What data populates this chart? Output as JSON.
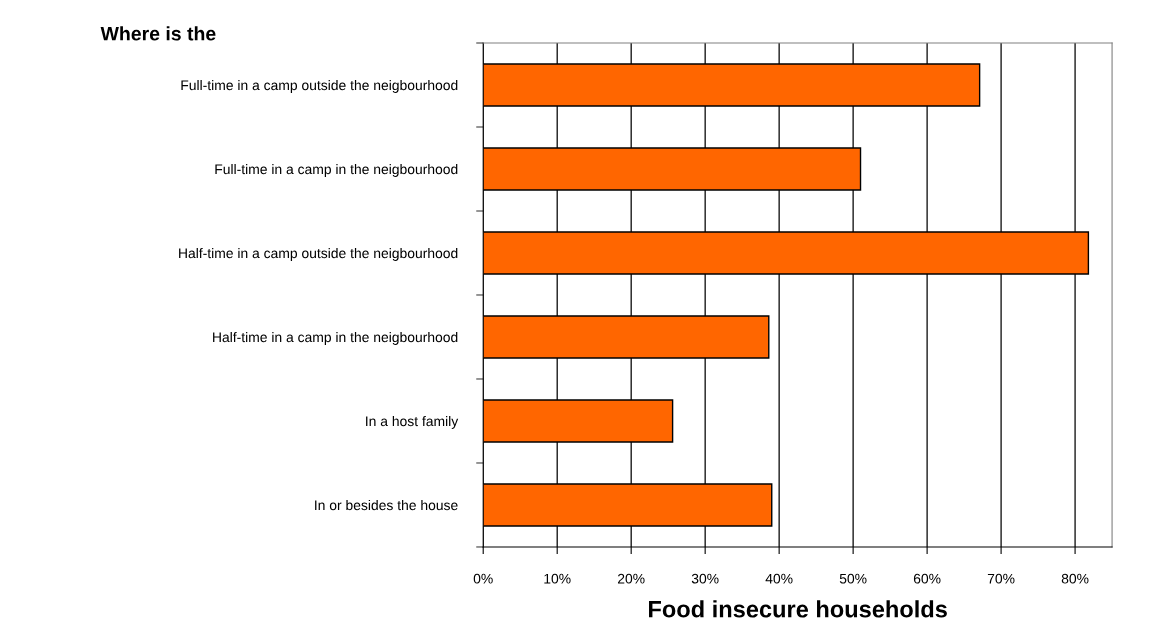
{
  "chart_data": {
    "type": "bar",
    "orientation": "horizontal",
    "title": "Where is the",
    "xlabel": "Food insecure households",
    "categories": [
      "Full-time in a camp outside the neigbourhood",
      "Full-time in a camp in the neigbourhood",
      "Half-time in a camp outside the neigbourhood",
      "Half-time in a camp in the neigbourhood",
      "In a host family",
      "In or besides the house"
    ],
    "values": [
      67.1,
      51.0,
      81.8,
      38.6,
      25.6,
      39.0
    ],
    "color": "#ff6600",
    "xlim": [
      0,
      85
    ],
    "xticks": [
      {
        "value": 0,
        "label": "0%"
      },
      {
        "value": 10,
        "label": "10%"
      },
      {
        "value": 20,
        "label": "20%"
      },
      {
        "value": 30,
        "label": "30%"
      },
      {
        "value": 40,
        "label": "40%"
      },
      {
        "value": 50,
        "label": "50%"
      },
      {
        "value": 60,
        "label": "60%"
      },
      {
        "value": 70,
        "label": "70%"
      },
      {
        "value": 80,
        "label": "80%"
      }
    ],
    "grid": "x"
  }
}
